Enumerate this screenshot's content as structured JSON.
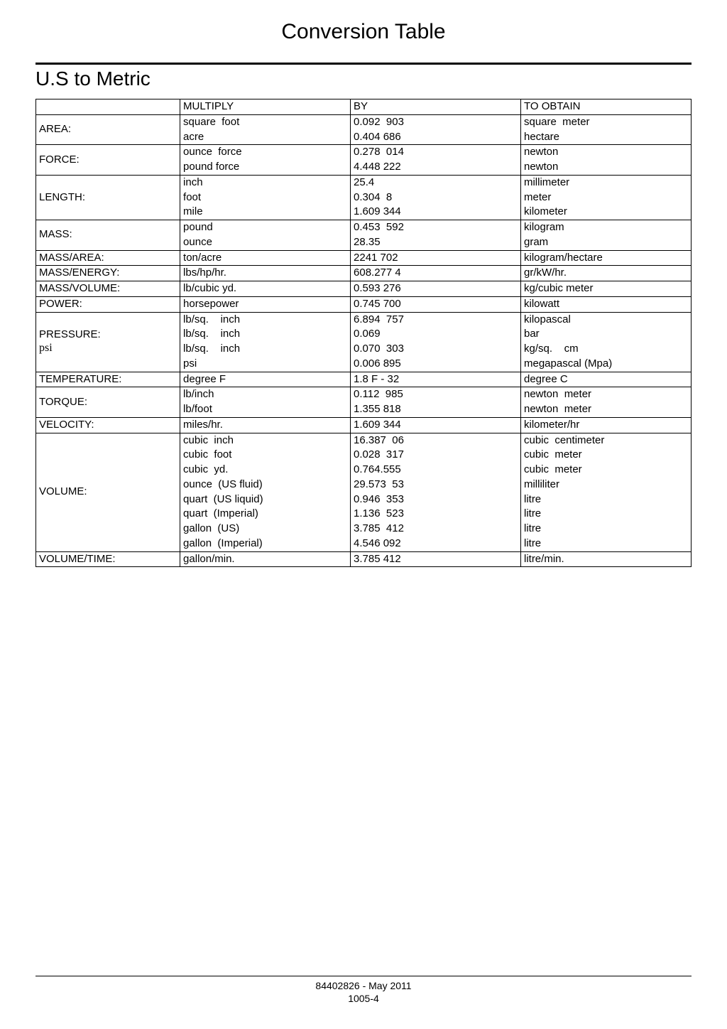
{
  "title": "Conversion Table",
  "subtitle": "U.S to Metric",
  "footer": {
    "line1": "84402826 - May 2011",
    "line2": "1005-4"
  },
  "header": {
    "multiply": "MULTIPLY",
    "by": "BY",
    "obtain": "TO OBTAIN"
  },
  "groups": [
    {
      "label": "AREA:",
      "rows": [
        {
          "m": "square  foot",
          "b": "0.092  903",
          "o": "square  meter"
        },
        {
          "m": "acre",
          "b": "0.404 686",
          "o": "hectare"
        }
      ]
    },
    {
      "label": "FORCE:",
      "rows": [
        {
          "m": "ounce  force",
          "b": "0.278  014",
          "o": "newton"
        },
        {
          "m": "pound force",
          "b": "4.448 222",
          "o": "newton"
        }
      ]
    },
    {
      "label": "LENGTH:",
      "rows": [
        {
          "m": "inch",
          "b": "25.4",
          "o": "millimeter"
        },
        {
          "m": "foot",
          "b": "0.304  8",
          "o": "meter"
        },
        {
          "m": "mile",
          "b": "1.609 344",
          "o": "kilometer"
        }
      ]
    },
    {
      "label": "MASS:",
      "rows": [
        {
          "m": "pound",
          "b": "0.453  592",
          "o": "kilogram"
        },
        {
          "m": "ounce",
          "b": "28.35",
          "o": "gram"
        }
      ]
    },
    {
      "label": "MASS/AREA:",
      "rows": [
        {
          "m": "ton/acre",
          "b": "2241 702",
          "o": "kilogram/hectare"
        }
      ]
    },
    {
      "label": "MASS/ENERGY:",
      "rows": [
        {
          "m": "lbs/hp/hr.",
          "b": "608.277 4",
          "o": "gr/kW/hr."
        }
      ]
    },
    {
      "label": "MASS/VOLUME:",
      "rows": [
        {
          "m": "lb/cubic yd.",
          "b": "0.593 276",
          "o": "kg/cubic meter"
        }
      ]
    },
    {
      "label": "POWER:",
      "rows": [
        {
          "m": "horsepower",
          "b": "0.745 700",
          "o": "kilowatt"
        }
      ]
    },
    {
      "label": "PRESSURE:",
      "psi": "psi",
      "rows": [
        {
          "m": "lb/sq.    inch",
          "b": "6.894  757",
          "o": "kilopascal"
        },
        {
          "m": "lb/sq.    inch",
          "b": "0.069",
          "o": "bar"
        },
        {
          "m": "lb/sq.    inch",
          "b": "0.070  303",
          "o": "kg/sq.    cm"
        },
        {
          "m": "psi",
          "b": "0.006 895",
          "o": "megapascal (Mpa)"
        }
      ]
    },
    {
      "label": "TEMPERATURE:",
      "rows": [
        {
          "m": "degree F",
          "b": "1.8 F - 32",
          "o": "degree C"
        }
      ]
    },
    {
      "label": "TORQUE:",
      "rows": [
        {
          "m": "lb/inch",
          "b": "0.112  985",
          "o": "newton  meter"
        },
        {
          "m": "lb/foot",
          "b": "1.355 818",
          "o": "newton  meter"
        }
      ]
    },
    {
      "label": "VELOCITY:",
      "rows": [
        {
          "m": "miles/hr.",
          "b": "1.609 344",
          "o": "kilometer/hr"
        }
      ]
    },
    {
      "label": "VOLUME:",
      "rows": [
        {
          "m": "cubic  inch",
          "b": "16.387  06",
          "o": "cubic  centimeter"
        },
        {
          "m": "cubic  foot",
          "b": "0.028  317",
          "o": "cubic  meter"
        },
        {
          "m": "cubic  yd.",
          "b": "0.764.555",
          "o": "cubic  meter"
        },
        {
          "m": "ounce  (US fluid)",
          "b": "29.573  53",
          "o": "milliliter"
        },
        {
          "m": "quart  (US liquid)",
          "b": "0.946  353",
          "o": "litre"
        },
        {
          "m": "quart  (Imperial)",
          "b": "1.136  523",
          "o": "litre"
        },
        {
          "m": "gallon  (US)",
          "b": "3.785  412",
          "o": "litre"
        },
        {
          "m": "gallon  (Imperial)",
          "b": "4.546 092",
          "o": "litre"
        }
      ]
    },
    {
      "label": "VOLUME/TIME:",
      "rows": [
        {
          "m": "gallon/min.",
          "b": "3.785 412",
          "o": "litre/min."
        }
      ]
    }
  ]
}
